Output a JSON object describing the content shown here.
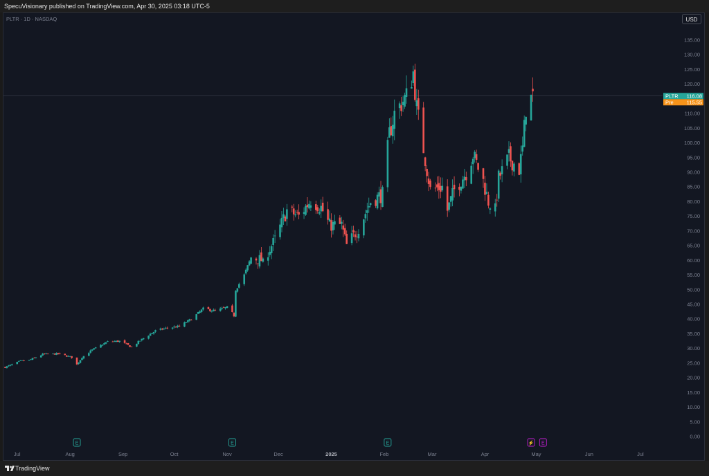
{
  "header": {
    "publish_line": "SpecuVisionary published on TradingView.com, Apr 30, 2025 03:18 UTC-5"
  },
  "symbol_line": "PLTR · 1D · NASDAQ",
  "currency_button": "USD",
  "footer": {
    "brand": "TradingView"
  },
  "colors": {
    "up": "#26a69a",
    "down": "#ef5350",
    "background": "#131722",
    "axis_text": "#7c8190",
    "pre_market": "#f7931a",
    "event_purple": "#c01fd0"
  },
  "chart_data": {
    "type": "candlestick",
    "symbol": "PLTR",
    "interval": "1D",
    "exchange": "NASDAQ",
    "currency": "USD",
    "x_range": [
      "2025-06-25",
      "2025-07-12"
    ],
    "ylim": [
      -3,
      140
    ],
    "y_ticks": [
      0,
      5,
      10,
      15,
      20,
      25,
      30,
      35,
      40,
      45,
      50,
      55,
      60,
      65,
      70,
      75,
      80,
      85,
      90,
      95,
      100,
      105,
      110,
      115,
      120,
      125,
      130,
      135
    ],
    "y_tick_labels": [
      "0.00",
      "5.00",
      "10.00",
      "15.00",
      "20.00",
      "25.00",
      "30.00",
      "35.00",
      "40.00",
      "45.00",
      "50.00",
      "55.00",
      "60.00",
      "65.00",
      "70.00",
      "75.00",
      "80.00",
      "85.00",
      "90.00",
      "95.00",
      "100.00",
      "105.00",
      "110.00",
      "115.00",
      "120.00",
      "125.00",
      "130.00",
      "135.00"
    ],
    "x_ticks": [
      {
        "date": "2024-07-01",
        "label": "Jul"
      },
      {
        "date": "2024-08-01",
        "label": "Aug"
      },
      {
        "date": "2024-09-01",
        "label": "Sep"
      },
      {
        "date": "2024-10-01",
        "label": "Oct"
      },
      {
        "date": "2024-11-01",
        "label": "Nov"
      },
      {
        "date": "2024-12-01",
        "label": "Dec"
      },
      {
        "date": "2025-01-01",
        "label": "2025"
      },
      {
        "date": "2025-02-01",
        "label": "Feb"
      },
      {
        "date": "2025-03-01",
        "label": "Mar"
      },
      {
        "date": "2025-04-01",
        "label": "Apr"
      },
      {
        "date": "2025-05-01",
        "label": "May"
      },
      {
        "date": "2025-06-01",
        "label": "Jun"
      },
      {
        "date": "2025-07-01",
        "label": "Jul"
      }
    ],
    "price_labels": [
      {
        "name": "PLTR",
        "value": 116.08,
        "text": "116.08",
        "color": "#26a69a"
      },
      {
        "name": "Pre",
        "value": 115.55,
        "text": "115.55",
        "color": "#f7931a"
      }
    ],
    "events": [
      {
        "date": "2024-08-05",
        "type": "earnings",
        "label": "E"
      },
      {
        "date": "2024-11-04",
        "type": "earnings",
        "label": "E"
      },
      {
        "date": "2025-02-03",
        "type": "earnings",
        "label": "E"
      },
      {
        "date": "2025-04-28",
        "type": "split",
        "label": "⚡"
      },
      {
        "date": "2025-05-05",
        "type": "earnings",
        "label": "E"
      }
    ],
    "anchors": [
      [
        "2024-06-24",
        23.6
      ],
      [
        "2024-06-28",
        24.5
      ],
      [
        "2024-07-03",
        25.7
      ],
      [
        "2024-07-08",
        26.0
      ],
      [
        "2024-07-16",
        28.0
      ],
      [
        "2024-07-25",
        28.2
      ],
      [
        "2024-08-02",
        27.0
      ],
      [
        "2024-08-05",
        24.5
      ],
      [
        "2024-08-08",
        27.0
      ],
      [
        "2024-08-14",
        29.5
      ],
      [
        "2024-08-23",
        32.3
      ],
      [
        "2024-08-30",
        32.5
      ],
      [
        "2024-09-06",
        30.5
      ],
      [
        "2024-09-13",
        33.5
      ],
      [
        "2024-09-20",
        36.0
      ],
      [
        "2024-09-27",
        37.0
      ],
      [
        "2024-10-04",
        37.5
      ],
      [
        "2024-10-11",
        40.0
      ],
      [
        "2024-10-18",
        43.5
      ],
      [
        "2024-10-25",
        42.8
      ],
      [
        "2024-11-01",
        44.0
      ],
      [
        "2024-11-04",
        42.0
      ],
      [
        "2024-11-05",
        41.2
      ],
      [
        "2024-11-06",
        50.0
      ],
      [
        "2024-11-11",
        55.0
      ],
      [
        "2024-11-15",
        61.0
      ],
      [
        "2024-11-22",
        60.0
      ],
      [
        "2024-11-29",
        67.0
      ],
      [
        "2024-12-06",
        77.0
      ],
      [
        "2024-12-13",
        75.0
      ],
      [
        "2024-12-20",
        80.6
      ],
      [
        "2024-12-26",
        78.0
      ],
      [
        "2024-12-31",
        72.0
      ],
      [
        "2025-01-07",
        72.0
      ],
      [
        "2025-01-10",
        65.0
      ],
      [
        "2025-01-17",
        71.0
      ],
      [
        "2025-01-24",
        80.0
      ],
      [
        "2025-01-31",
        82.5
      ],
      [
        "2025-02-04",
        103.0
      ],
      [
        "2025-02-07",
        110.0
      ],
      [
        "2025-02-14",
        116.0
      ],
      [
        "2025-02-18",
        124.0
      ],
      [
        "2025-02-20",
        112.0
      ],
      [
        "2025-02-24",
        98.0
      ],
      [
        "2025-02-28",
        84.0
      ],
      [
        "2025-03-07",
        85.0
      ],
      [
        "2025-03-10",
        77.0
      ],
      [
        "2025-03-14",
        84.0
      ],
      [
        "2025-03-21",
        90.0
      ],
      [
        "2025-03-25",
        96.0
      ],
      [
        "2025-03-31",
        87.0
      ],
      [
        "2025-04-03",
        80.0
      ],
      [
        "2025-04-07",
        77.0
      ],
      [
        "2025-04-09",
        88.0
      ],
      [
        "2025-04-15",
        95.0
      ],
      [
        "2025-04-21",
        91.0
      ],
      [
        "2025-04-23",
        98.0
      ],
      [
        "2025-04-25",
        112.0
      ],
      [
        "2025-04-29",
        116.08
      ]
    ]
  }
}
